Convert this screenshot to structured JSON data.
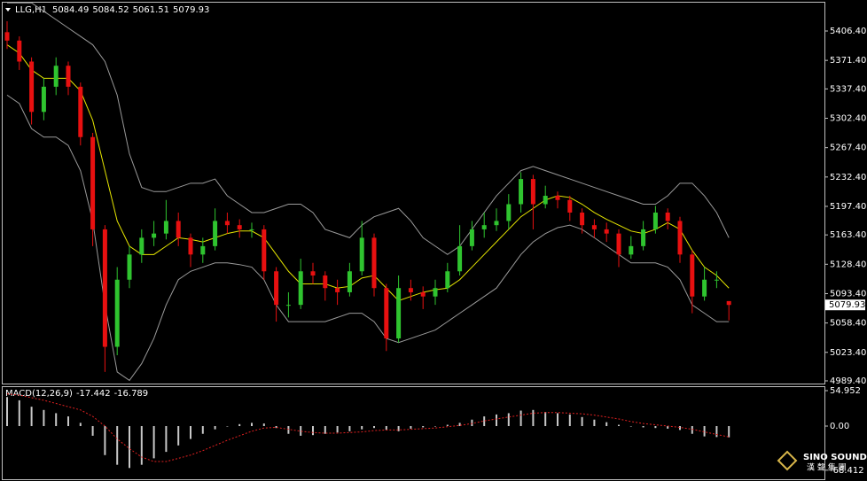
{
  "chart_data": [
    {
      "type": "candlestick",
      "title": "LLG,H1",
      "open": [
        5405,
        5395,
        5370,
        5310,
        5340,
        5365,
        5340,
        5280,
        5170,
        5030,
        5110,
        5140,
        5160,
        5165,
        5180,
        5160,
        5140,
        5150,
        5180,
        5175,
        5170,
        5170,
        5120,
        5080,
        5080,
        5120,
        5115,
        5100,
        5095,
        5120,
        5160,
        5100,
        5040,
        5100,
        5095,
        5090,
        5100,
        5120,
        5150,
        5170,
        5175,
        5180,
        5200,
        5230,
        5200,
        5210,
        5205,
        5190,
        5175,
        5170,
        5165,
        5140,
        5150,
        5170,
        5190,
        5180,
        5140,
        5090,
        5110,
        5084.49
      ],
      "high": [
        5418,
        5400,
        5375,
        5350,
        5375,
        5370,
        5345,
        5285,
        5175,
        5125,
        5150,
        5170,
        5180,
        5205,
        5190,
        5165,
        5160,
        5195,
        5190,
        5182,
        5178,
        5175,
        5125,
        5095,
        5135,
        5130,
        5120,
        5110,
        5130,
        5180,
        5165,
        5105,
        5115,
        5110,
        5102,
        5110,
        5130,
        5175,
        5180,
        5190,
        5195,
        5212,
        5238,
        5235,
        5222,
        5215,
        5210,
        5195,
        5182,
        5178,
        5170,
        5162,
        5180,
        5198,
        5195,
        5185,
        5145,
        5125,
        5120,
        5084.52
      ],
      "low": [
        5385,
        5360,
        5295,
        5300,
        5330,
        5330,
        5270,
        5150,
        5000,
        5020,
        5100,
        5130,
        5150,
        5158,
        5150,
        5125,
        5130,
        5145,
        5165,
        5160,
        5160,
        5110,
        5060,
        5065,
        5075,
        5105,
        5085,
        5080,
        5090,
        5115,
        5090,
        5025,
        5035,
        5085,
        5075,
        5080,
        5095,
        5115,
        5145,
        5160,
        5168,
        5170,
        5190,
        5170,
        5195,
        5195,
        5180,
        5165,
        5160,
        5155,
        5125,
        5135,
        5145,
        5165,
        5170,
        5130,
        5070,
        5085,
        5100,
        5061.51
      ],
      "close": [
        5395,
        5370,
        5310,
        5340,
        5365,
        5340,
        5280,
        5170,
        5030,
        5110,
        5140,
        5160,
        5165,
        5180,
        5160,
        5140,
        5150,
        5180,
        5175,
        5170,
        5170,
        5120,
        5080,
        5080,
        5120,
        5115,
        5100,
        5095,
        5120,
        5160,
        5100,
        5040,
        5100,
        5095,
        5090,
        5100,
        5120,
        5150,
        5170,
        5175,
        5180,
        5200,
        5230,
        5200,
        5210,
        5205,
        5190,
        5175,
        5170,
        5165,
        5140,
        5150,
        5170,
        5190,
        5180,
        5140,
        5090,
        5110,
        5110,
        5079.93
      ],
      "up_color": "#2fc42f",
      "down_color": "#e81010",
      "lines": [
        {
          "color": "#e6e600",
          "values": [
            5390,
            5380,
            5360,
            5350,
            5350,
            5350,
            5335,
            5300,
            5240,
            5180,
            5150,
            5140,
            5140,
            5150,
            5160,
            5158,
            5155,
            5160,
            5165,
            5168,
            5168,
            5160,
            5140,
            5120,
            5105,
            5105,
            5105,
            5100,
            5102,
            5112,
            5115,
            5100,
            5085,
            5090,
            5095,
            5098,
            5100,
            5110,
            5125,
            5140,
            5155,
            5170,
            5185,
            5195,
            5205,
            5210,
            5208,
            5200,
            5190,
            5182,
            5175,
            5168,
            5165,
            5170,
            5178,
            5170,
            5145,
            5125,
            5115,
            5100
          ]
        },
        {
          "color": "#9a9a9a",
          "values": [
            5440,
            5440,
            5440,
            5430,
            5420,
            5410,
            5400,
            5390,
            5370,
            5330,
            5260,
            5220,
            5215,
            5215,
            5220,
            5225,
            5225,
            5230,
            5210,
            5200,
            5190,
            5190,
            5195,
            5200,
            5200,
            5190,
            5170,
            5165,
            5160,
            5175,
            5185,
            5190,
            5195,
            5180,
            5160,
            5150,
            5140,
            5150,
            5170,
            5190,
            5210,
            5225,
            5240,
            5245,
            5240,
            5235,
            5230,
            5225,
            5220,
            5215,
            5210,
            5205,
            5200,
            5200,
            5210,
            5225,
            5225,
            5210,
            5190,
            5160
          ]
        },
        {
          "color": "#9a9a9a",
          "values": [
            5330,
            5320,
            5290,
            5280,
            5280,
            5270,
            5240,
            5180,
            5080,
            5000,
            4990,
            5010,
            5040,
            5080,
            5110,
            5120,
            5125,
            5130,
            5130,
            5128,
            5125,
            5110,
            5080,
            5060,
            5060,
            5060,
            5060,
            5065,
            5070,
            5070,
            5060,
            5040,
            5035,
            5040,
            5045,
            5050,
            5060,
            5070,
            5080,
            5090,
            5100,
            5120,
            5140,
            5155,
            5165,
            5172,
            5175,
            5170,
            5160,
            5150,
            5140,
            5130,
            5130,
            5130,
            5125,
            5110,
            5080,
            5070,
            5060,
            5060
          ]
        }
      ],
      "ylim": [
        4986.2,
        5440.2
      ],
      "yticks": [
        {
          "value": 5406.4,
          "label": "5406.40"
        },
        {
          "value": 5371.4,
          "label": "5371.40"
        },
        {
          "value": 5337.4,
          "label": "5337.40"
        },
        {
          "value": 5302.4,
          "label": "5302.40"
        },
        {
          "value": 5267.4,
          "label": "5267.40"
        },
        {
          "value": 5232.4,
          "label": "5232.40"
        },
        {
          "value": 5197.4,
          "label": "5197.40"
        },
        {
          "value": 5163.4,
          "label": "5163.40"
        },
        {
          "value": 5128.4,
          "label": "5128.40"
        },
        {
          "value": 5093.4,
          "label": "5093.40"
        },
        {
          "value": 5058.4,
          "label": "5058.40"
        },
        {
          "value": 5023.4,
          "label": "5023.40"
        },
        {
          "value": 4989.4,
          "label": "4989.40"
        }
      ]
    },
    {
      "type": "macd",
      "title": "MACD(12,26,9)",
      "macd": [
        45,
        40,
        30,
        25,
        20,
        15,
        5,
        -15,
        -45,
        -60,
        -65,
        -60,
        -50,
        -40,
        -30,
        -20,
        -12,
        -5,
        0,
        3,
        5,
        4,
        -3,
        -12,
        -15,
        -14,
        -12,
        -10,
        -8,
        -5,
        -3,
        -6,
        -8,
        -4,
        -2,
        0,
        2,
        5,
        10,
        15,
        18,
        20,
        24,
        25,
        22,
        20,
        18,
        14,
        10,
        6,
        2,
        0,
        -2,
        -3,
        -4,
        -6,
        -12,
        -16,
        -17,
        -17.442
      ],
      "signal": [
        50,
        48,
        44,
        40,
        35,
        30,
        25,
        15,
        0,
        -20,
        -35,
        -48,
        -55,
        -55,
        -50,
        -45,
        -38,
        -30,
        -22,
        -15,
        -8,
        -3,
        -2,
        -5,
        -8,
        -10,
        -11,
        -11,
        -10,
        -9,
        -7,
        -6,
        -6,
        -5,
        -4,
        -3,
        -1,
        1,
        4,
        8,
        11,
        14,
        17,
        20,
        21,
        21,
        20,
        19,
        17,
        14,
        11,
        7,
        4,
        2,
        0,
        -2,
        -5,
        -9,
        -13,
        -16.789
      ],
      "bar_color": "#c8c8c8",
      "signal_color": "#e02020",
      "ylim": [
        -82.43,
        60.45
      ],
      "yticks": [
        54.952,
        {
          "value": 0,
          "label": "0.00"
        },
        -68.412
      ]
    }
  ],
  "watermark": {
    "name": "SINO SOUND",
    "subtitle": "漢 聲 集 團"
  }
}
